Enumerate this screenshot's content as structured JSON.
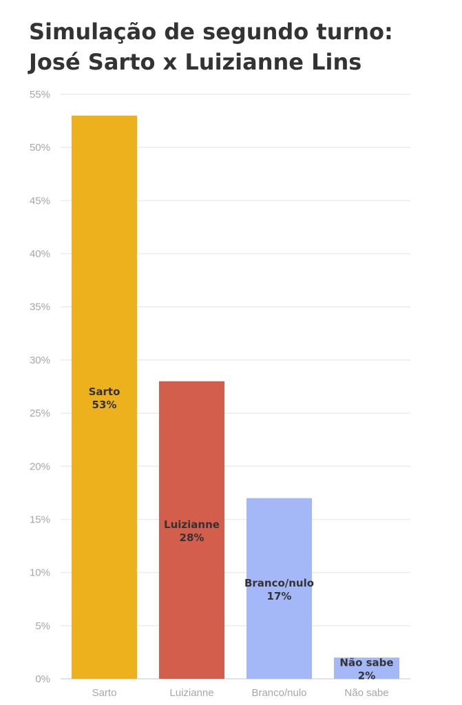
{
  "title": "Simulação de segundo turno: José Sarto x Luizianne Lins",
  "chart_data": {
    "type": "bar",
    "categories": [
      "Sarto",
      "Luizianne",
      "Branco/nulo",
      "Não sabe"
    ],
    "values": [
      53,
      28,
      17,
      2
    ],
    "value_suffix": "%",
    "colors": [
      "#ecb11d",
      "#d35e4c",
      "#a4b7f7",
      "#a4b7f7"
    ],
    "ylim": [
      0,
      55
    ],
    "yticks": [
      "0%",
      "5%",
      "10%",
      "15%",
      "20%",
      "25%",
      "30%",
      "35%",
      "40%",
      "45%",
      "50%",
      "55%"
    ],
    "grid": true,
    "xlabel": "",
    "ylabel": ""
  }
}
